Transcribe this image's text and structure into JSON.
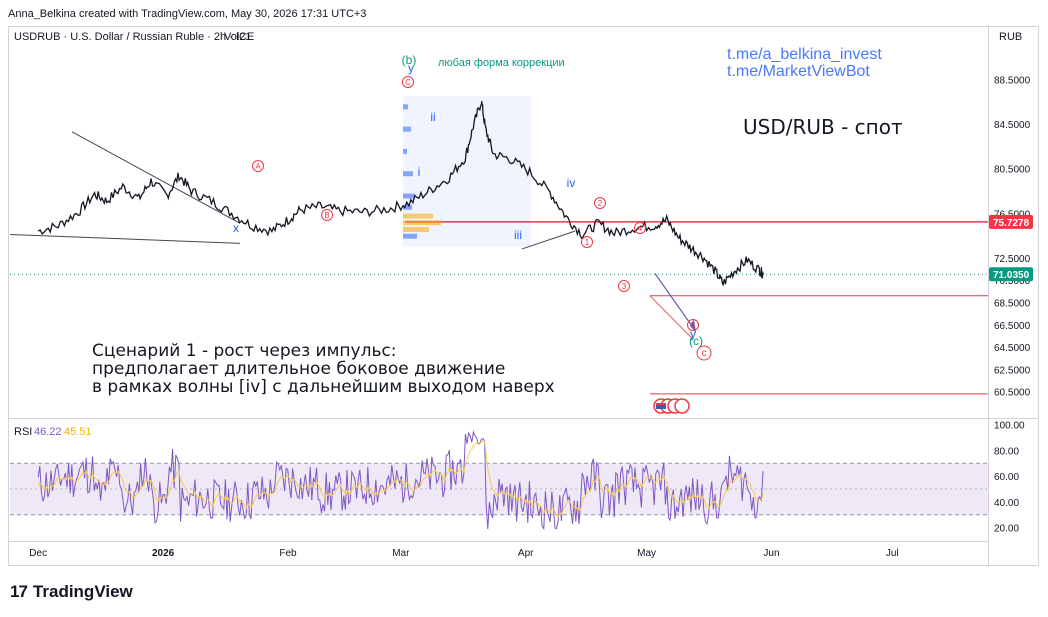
{
  "header": "Anna_Belkina created with TradingView.com, May 30, 2026 17:31 UTC+3",
  "footer_logo": "TradingView",
  "footer_logo_mark": "17",
  "chart_data": [
    {
      "type": "line",
      "symbol": "USDRUB · U.S. Dollar / Russian Ruble · 2h · ICE",
      "volume_label": "Vol21",
      "currency": "RUB",
      "y_ticks": [
        60.5,
        62.5,
        64.5,
        66.5,
        68.5,
        70.5,
        72.5,
        76.5,
        80.5,
        84.5,
        88.5
      ],
      "y_tick_labels": [
        "60.5000",
        "62.5000",
        "64.5000",
        "66.5000",
        "68.5000",
        "70.5000",
        "72.5000",
        "76.5000",
        "80.5000",
        "84.5000",
        "88.5000"
      ],
      "ylim": [
        58.5,
        91.5
      ],
      "x_labels": [
        "Dec",
        "2026",
        "Feb",
        "Mar",
        "Apr",
        "May",
        "Jun",
        "Jul"
      ],
      "price_labels": [
        {
          "text": "75.7278",
          "value": 75.7278,
          "color": "#f23645"
        },
        {
          "text": "71.0350",
          "value": 71.035,
          "color": "#089981"
        }
      ],
      "series_close_points": [
        [
          "Dec 1",
          74.9
        ],
        [
          "Dec 6",
          75.4
        ],
        [
          "Dec 11",
          76.6
        ],
        [
          "Dec 15",
          78.2
        ],
        [
          "Dec 18",
          77.6
        ],
        [
          "Dec 22",
          78.9
        ],
        [
          "Dec 26",
          77.8
        ],
        [
          "Dec 29",
          79.4
        ],
        [
          "Jan 2",
          78.1
        ],
        [
          "Jan 5",
          79.9
        ],
        [
          "Jan 8",
          78.5
        ],
        [
          "Jan 13",
          77.6
        ],
        [
          "Jan 18",
          76.5
        ],
        [
          "Jan 23",
          75.4
        ],
        [
          "Jan 28",
          74.9
        ],
        [
          "Feb 1",
          75.9
        ],
        [
          "Feb 4",
          76.8
        ],
        [
          "Feb 9",
          77.1
        ],
        [
          "Feb 14",
          76.7
        ],
        [
          "Feb 20",
          76.6
        ],
        [
          "Feb 26",
          76.9
        ],
        [
          "Mar 3",
          77.4
        ],
        [
          "Mar 8",
          78.5
        ],
        [
          "Mar 13",
          79.7
        ],
        [
          "Mar 17",
          81.5
        ],
        [
          "Mar 19",
          84.3
        ],
        [
          "Mar 21",
          86.6
        ],
        [
          "Mar 22",
          84.1
        ],
        [
          "Mar 24",
          81.8
        ],
        [
          "Mar 28",
          81.4
        ],
        [
          "Apr 2",
          80.2
        ],
        [
          "Apr 7",
          78.4
        ],
        [
          "Apr 11",
          76.2
        ],
        [
          "Apr 15",
          74.6
        ],
        [
          "Apr 19",
          75.6
        ],
        [
          "Apr 23",
          74.7
        ],
        [
          "Apr 28",
          75.2
        ],
        [
          "May 3",
          75.4
        ],
        [
          "May 6",
          75.9
        ],
        [
          "May 9",
          74.3
        ],
        [
          "May 12",
          73.4
        ],
        [
          "May 15",
          72.6
        ],
        [
          "May 18",
          71.3
        ],
        [
          "May 20",
          70.2
        ],
        [
          "May 23",
          71.4
        ],
        [
          "May 26",
          72.3
        ],
        [
          "May 29",
          71.4
        ],
        [
          "May 30",
          71.035
        ]
      ],
      "horizontal_lines": [
        {
          "value": 75.7278,
          "color": "#f23645"
        },
        {
          "value": 69.1,
          "color": "#f23645"
        },
        {
          "value": 60.3,
          "color": "#f23645"
        }
      ],
      "annotations": {
        "title": "USD/RUB - спот",
        "links": [
          "t.me/a_belkina_invest",
          "t.me/MarketViewBot"
        ],
        "correction_note": "любая форма коррекции",
        "scenario_lines": [
          "Сценарий 1 - рост через импульс:",
          "предполагает длительное боковое движение",
          "в рамках волны [iv] с дальнейшим выходом наверх"
        ],
        "wave_labels": [
          {
            "text": "A",
            "circled": true,
            "color": "#f23645"
          },
          {
            "text": "B",
            "circled": true,
            "color": "#f23645"
          },
          {
            "text": "C",
            "circled": true,
            "color": "#f23645"
          },
          {
            "text": "x",
            "circled": false,
            "color": "#2962ff"
          },
          {
            "text": "(b)",
            "circled": false,
            "color": "#089981"
          },
          {
            "text": "y",
            "circled": false,
            "color": "#2962ff"
          },
          {
            "text": "i",
            "circled": false,
            "color": "#2962ff"
          },
          {
            "text": "ii",
            "circled": false,
            "color": "#2962ff"
          },
          {
            "text": "iii",
            "circled": false,
            "color": "#2962ff"
          },
          {
            "text": "iv",
            "circled": false,
            "color": "#2962ff"
          },
          {
            "text": "1",
            "circled": true,
            "color": "#f23645"
          },
          {
            "text": "2",
            "circled": true,
            "color": "#f23645"
          },
          {
            "text": "3",
            "circled": true,
            "color": "#f23645"
          },
          {
            "text": "4",
            "circled": true,
            "color": "#f23645"
          },
          {
            "text": "5",
            "circled": true,
            "color": "#f23645"
          },
          {
            "text": "y",
            "circled": false,
            "color": "#2962ff"
          },
          {
            "text": "(c)",
            "circled": false,
            "color": "#089981"
          },
          {
            "text": "c",
            "circled": true,
            "color": "#f23645"
          }
        ]
      }
    },
    {
      "type": "line",
      "indicator": "RSI",
      "values_label": [
        "46.22",
        "45.51"
      ],
      "y_ticks": [
        20,
        40,
        60,
        80,
        100
      ],
      "y_tick_labels": [
        "20.00",
        "40.00",
        "60.00",
        "80.00",
        "100.00"
      ],
      "ylim": [
        12,
        102
      ],
      "band": [
        30,
        70
      ],
      "midline": 50,
      "colors": {
        "rsi": "#7e57c2",
        "ma": "#f7c948",
        "band": "#ede7f6"
      }
    }
  ]
}
